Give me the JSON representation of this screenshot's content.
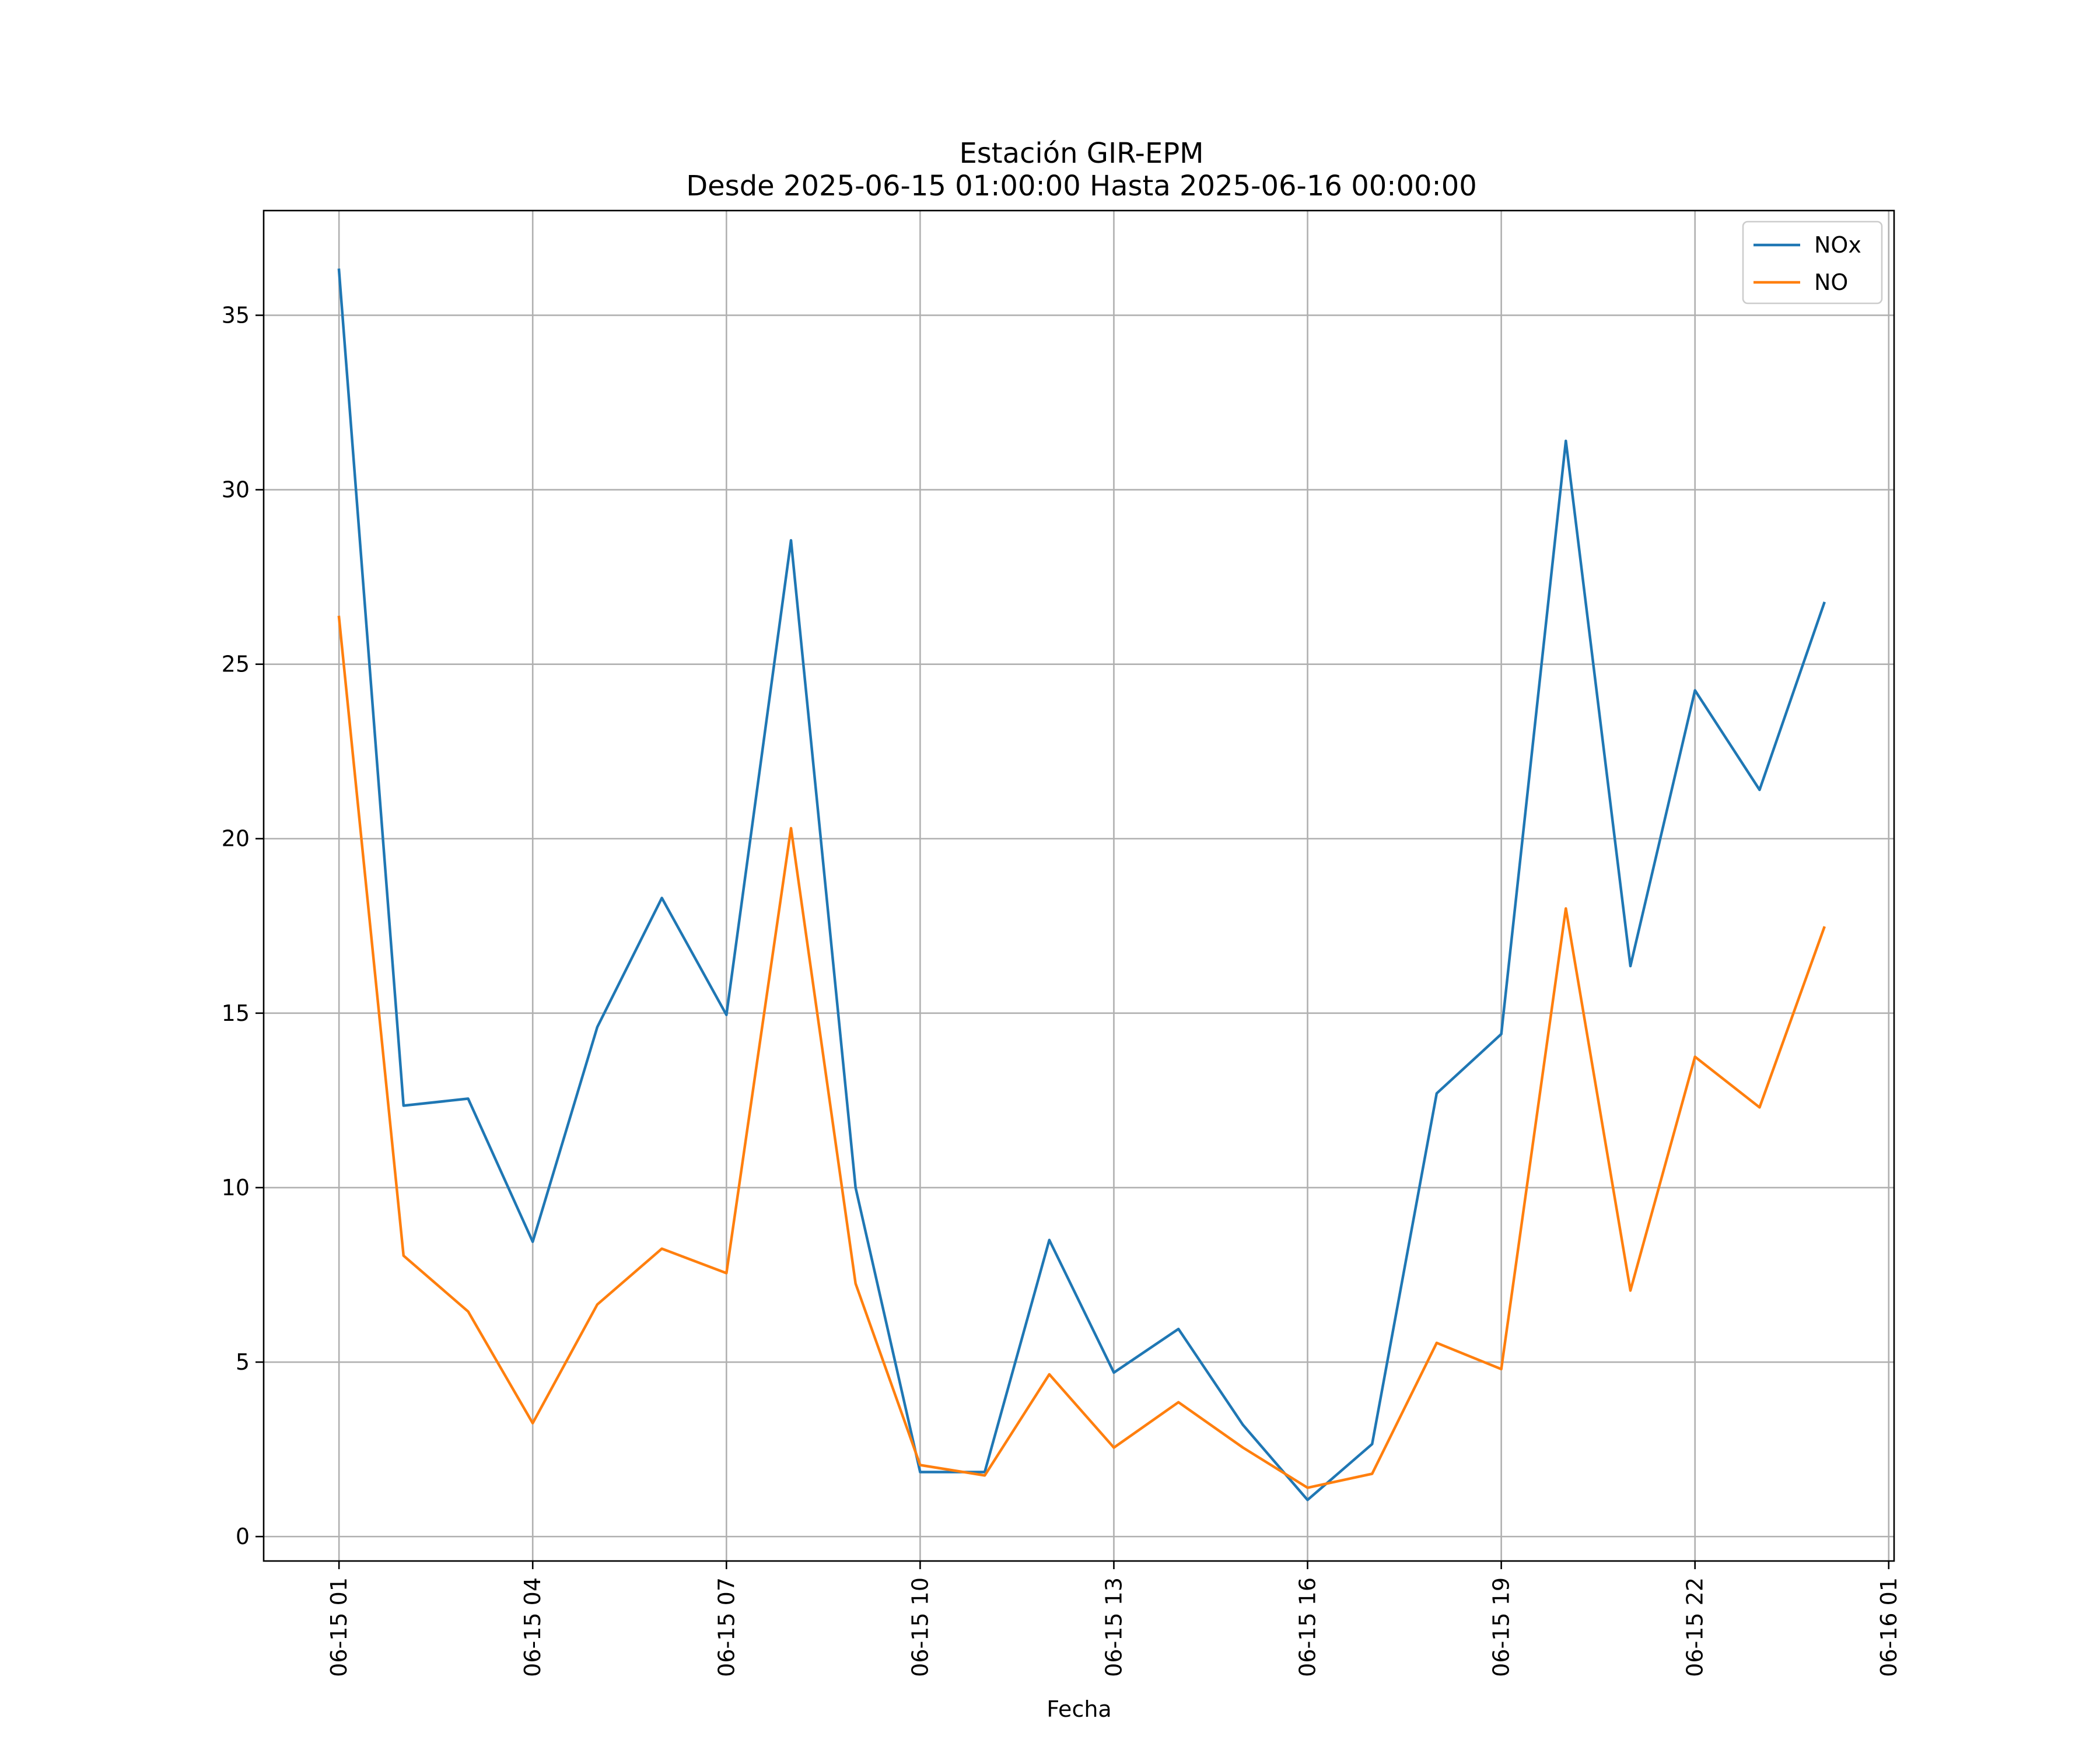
{
  "chart_data": {
    "type": "line",
    "title": "Estación GIR-EPM",
    "subtitle": "Desde 2025-06-15 01:00:00 Hasta 2025-06-16 00:00:00",
    "xlabel": "Fecha",
    "ylabel": "",
    "x": [
      "2025-06-15 01:00",
      "2025-06-15 02:00",
      "2025-06-15 03:00",
      "2025-06-15 04:00",
      "2025-06-15 05:00",
      "2025-06-15 06:00",
      "2025-06-15 07:00",
      "2025-06-15 08:00",
      "2025-06-15 09:00",
      "2025-06-15 10:00",
      "2025-06-15 11:00",
      "2025-06-15 12:00",
      "2025-06-15 13:00",
      "2025-06-15 14:00",
      "2025-06-15 15:00",
      "2025-06-15 16:00",
      "2025-06-15 17:00",
      "2025-06-15 18:00",
      "2025-06-15 19:00",
      "2025-06-15 20:00",
      "2025-06-15 21:00",
      "2025-06-15 22:00",
      "2025-06-15 23:00",
      "2025-06-16 00:00"
    ],
    "xlim": [
      "2025-06-14 23:50",
      "2025-06-16 01:05"
    ],
    "ylim": [
      -0.7,
      38.0
    ],
    "xticks": [
      "06-15 01",
      "06-15 04",
      "06-15 07",
      "06-15 10",
      "06-15 13",
      "06-15 16",
      "06-15 19",
      "06-15 22",
      "06-16 01"
    ],
    "yticks": [
      0,
      5,
      10,
      15,
      20,
      25,
      30,
      35
    ],
    "grid": true,
    "legend_position": "top-right",
    "series": [
      {
        "name": "NOx",
        "color": "#1f77b4",
        "values": [
          36.3,
          12.35,
          12.55,
          8.45,
          14.6,
          18.3,
          14.95,
          28.55,
          10.0,
          1.85,
          1.85,
          8.5,
          4.7,
          5.95,
          3.2,
          1.05,
          2.65,
          12.7,
          14.4,
          31.4,
          16.35,
          24.25,
          21.4,
          26.75
        ]
      },
      {
        "name": "NO",
        "color": "#ff7f0e",
        "values": [
          26.35,
          8.05,
          6.45,
          3.25,
          6.65,
          8.25,
          7.55,
          20.3,
          7.25,
          2.05,
          1.75,
          4.65,
          2.55,
          3.85,
          2.55,
          1.4,
          1.8,
          5.55,
          4.8,
          18.0,
          7.05,
          13.75,
          12.3,
          17.45
        ]
      }
    ]
  }
}
